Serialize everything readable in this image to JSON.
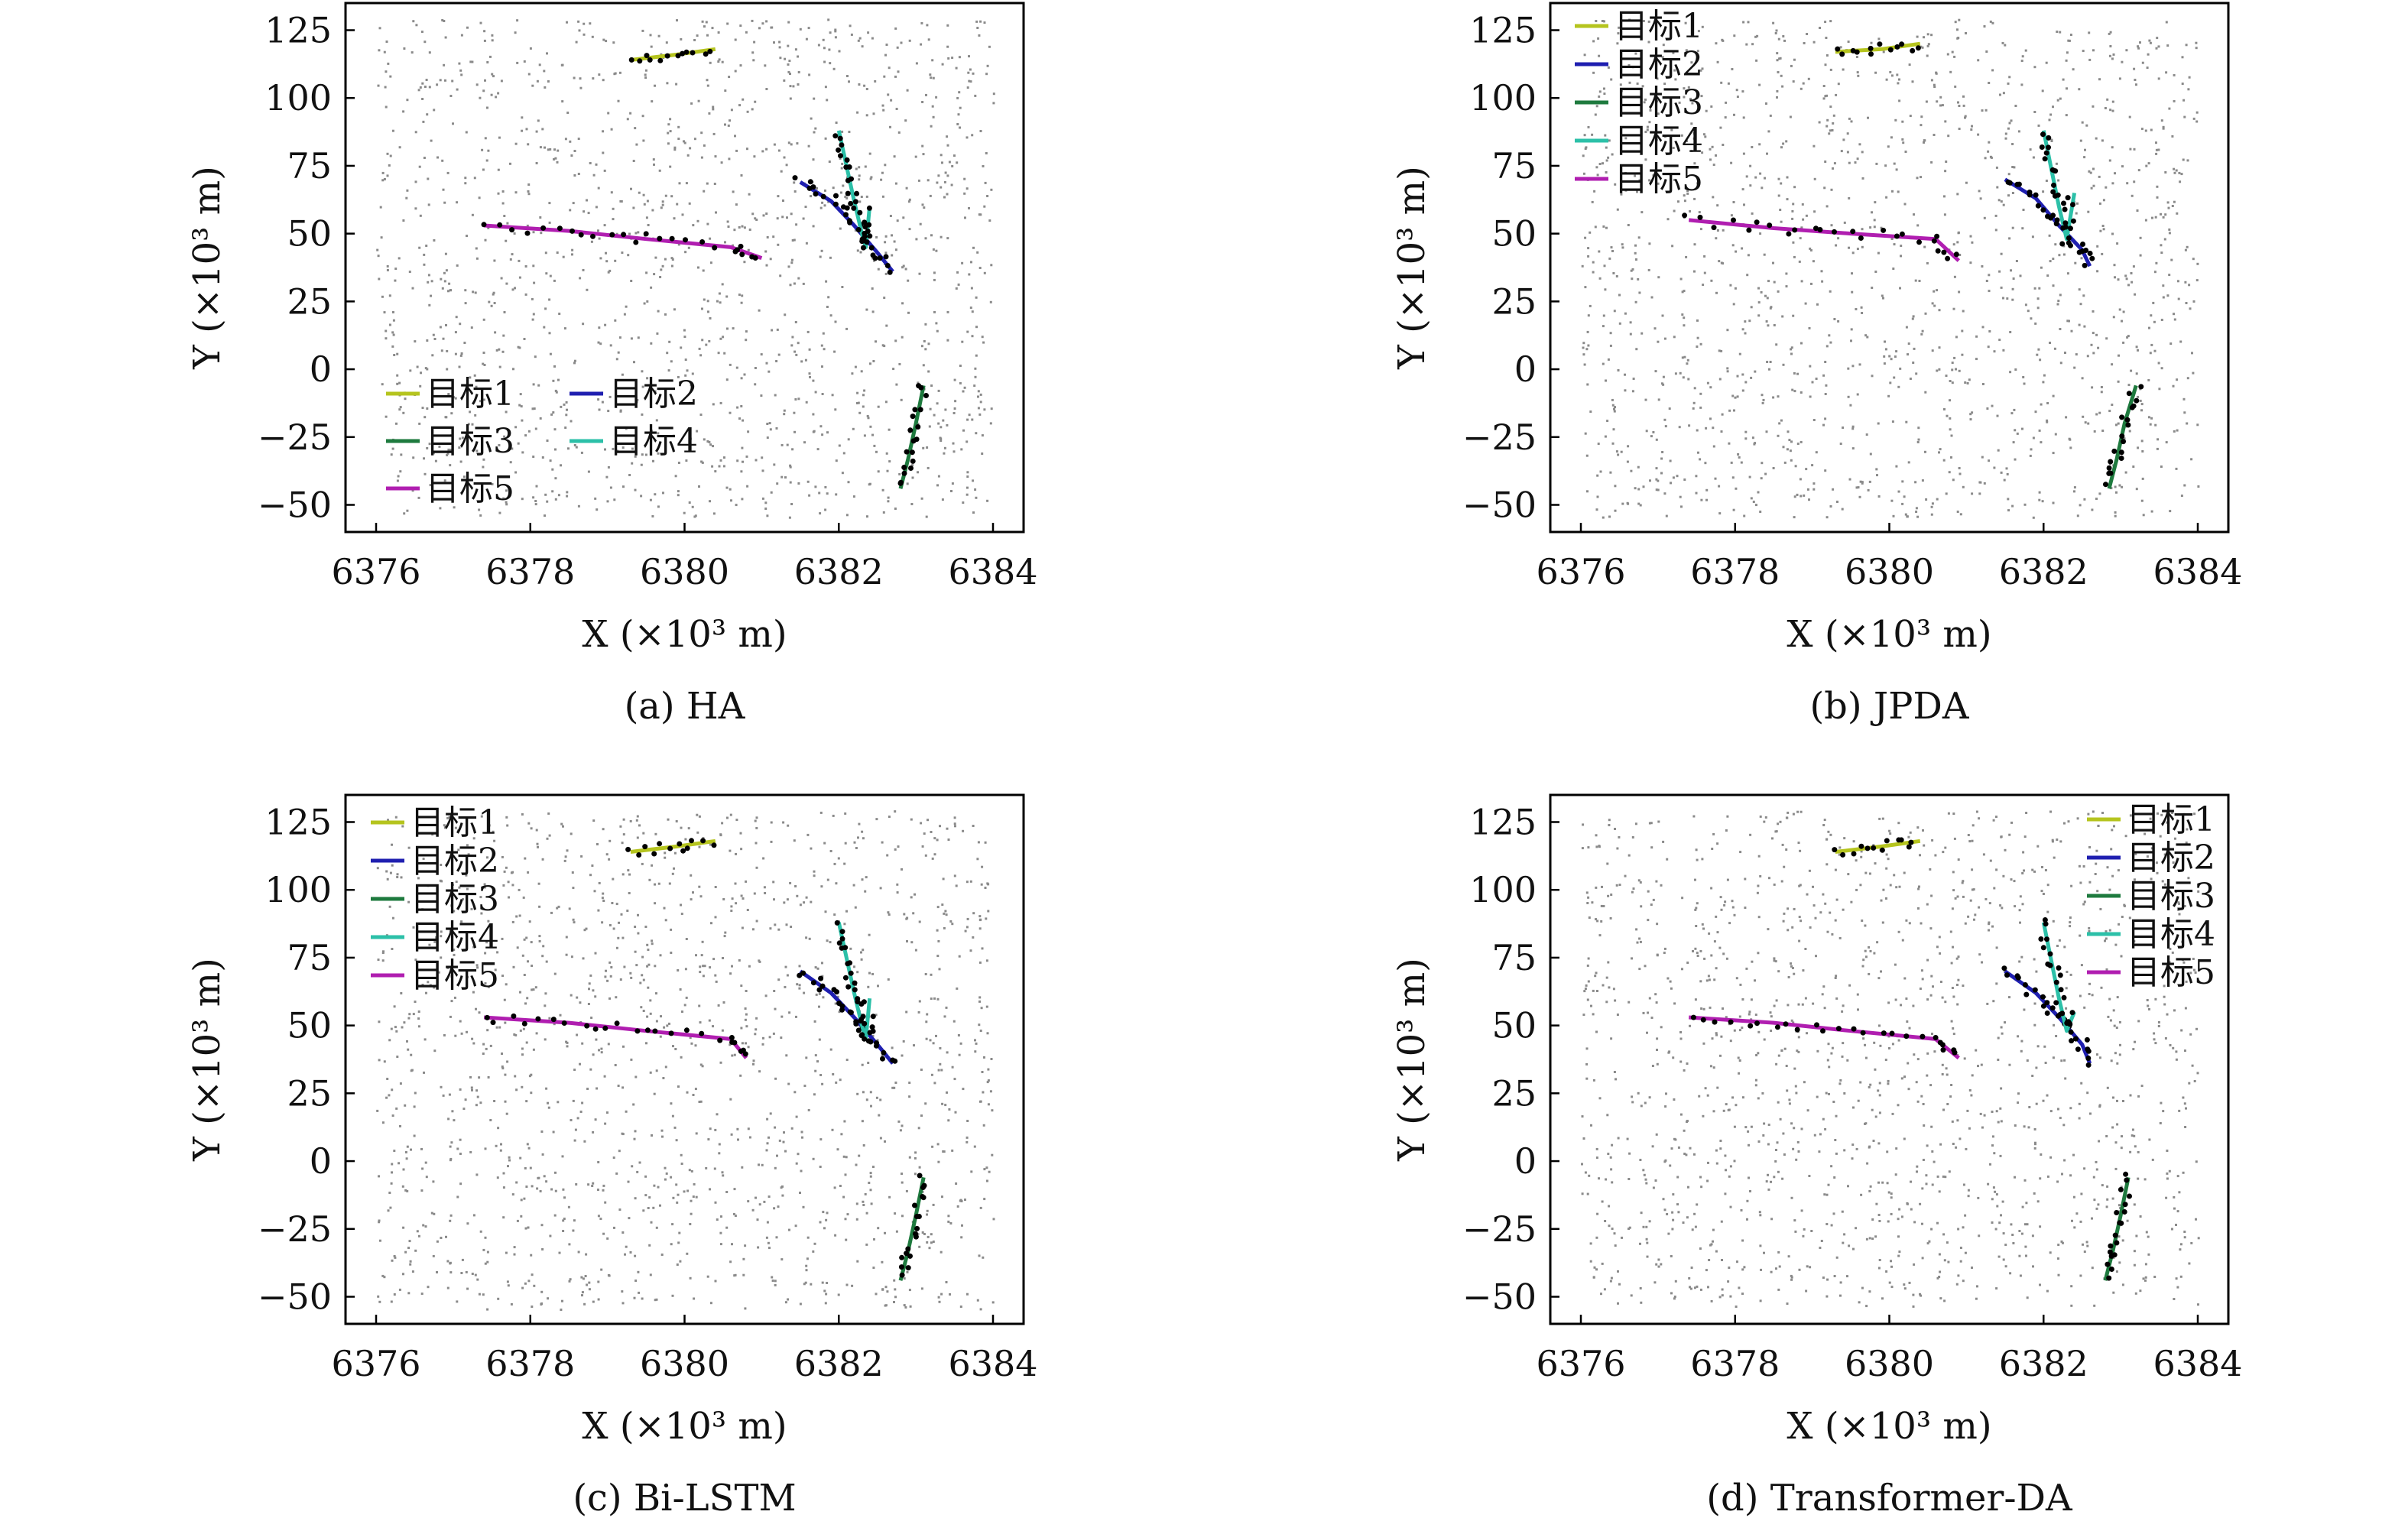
{
  "colors": {
    "target1": "#b5c41e",
    "target2": "#1f1fb0",
    "target3": "#1e7a3e",
    "target4": "#2cc0a8",
    "target5": "#b01eb0",
    "clutter": "#8a8a8a",
    "detections": "#000000"
  },
  "chart_data": [
    {
      "type": "line",
      "caption": "(a) HA",
      "xlabel": "X (×10³ m)",
      "ylabel": "Y (×10³ m)",
      "xlim": [
        6376,
        6384
      ],
      "ylim": [
        -60,
        135
      ],
      "xticks": [
        "6376",
        "6378",
        "6380",
        "6382",
        "6384"
      ],
      "yticks": [
        "125",
        "100",
        "75",
        "50",
        "25",
        "0",
        "−25",
        "−50"
      ],
      "grid": false,
      "legend": "bottom-left (2 columns)",
      "series": [
        {
          "name": "目标1",
          "color_key": "target1",
          "x": [
            6379.3,
            6379.9,
            6380.4
          ],
          "y": [
            114,
            116,
            118
          ]
        },
        {
          "name": "目标2",
          "color_key": "target2",
          "x": [
            6381.5,
            6381.9,
            6382.2,
            6382.5,
            6382.7
          ],
          "y": [
            69,
            62,
            53,
            43,
            36
          ]
        },
        {
          "name": "目标3",
          "color_key": "target3",
          "x": [
            6383.1,
            6383.0,
            6382.9,
            6382.8
          ],
          "y": [
            -6,
            -20,
            -33,
            -44
          ]
        },
        {
          "name": "目标4",
          "color_key": "target4",
          "x": [
            6382.0,
            6382.1,
            6382.2,
            6382.3,
            6382.35,
            6382.4
          ],
          "y": [
            88,
            75,
            62,
            50,
            45,
            60
          ]
        },
        {
          "name": "目标5",
          "color_key": "target5",
          "x": [
            6377.4,
            6378.5,
            6379.5,
            6380.6,
            6381.0
          ],
          "y": [
            53,
            51,
            48,
            45,
            41
          ]
        }
      ]
    },
    {
      "type": "line",
      "caption": "(b) JPDA",
      "xlabel": "X (×10³ m)",
      "ylabel": "Y (×10³ m)",
      "xlim": [
        6376,
        6384
      ],
      "ylim": [
        -60,
        135
      ],
      "xticks": [
        "6376",
        "6378",
        "6380",
        "6382",
        "6384"
      ],
      "yticks": [
        "125",
        "100",
        "75",
        "50",
        "25",
        "0",
        "−25",
        "−50"
      ],
      "grid": false,
      "legend": "top-left",
      "series": [
        {
          "name": "目标1",
          "color_key": "target1",
          "x": [
            6379.3,
            6379.9,
            6380.4
          ],
          "y": [
            117,
            118,
            120
          ]
        },
        {
          "name": "目标2",
          "color_key": "target2",
          "x": [
            6381.5,
            6381.9,
            6382.2,
            6382.5,
            6382.6
          ],
          "y": [
            70,
            63,
            53,
            44,
            38
          ]
        },
        {
          "name": "目标3",
          "color_key": "target3",
          "x": [
            6383.2,
            6383.05,
            6382.95,
            6382.85
          ],
          "y": [
            -6,
            -20,
            -33,
            -44
          ]
        },
        {
          "name": "目标4",
          "color_key": "target4",
          "x": [
            6382.0,
            6382.1,
            6382.2,
            6382.3,
            6382.4
          ],
          "y": [
            88,
            74,
            60,
            48,
            65
          ]
        },
        {
          "name": "目标5",
          "color_key": "target5",
          "x": [
            6377.4,
            6378.5,
            6379.5,
            6380.6,
            6380.9
          ],
          "y": [
            55,
            52,
            50,
            48,
            40
          ]
        }
      ]
    },
    {
      "type": "line",
      "caption": "(c) Bi-LSTM",
      "xlabel": "X (×10³ m)",
      "ylabel": "Y (×10³ m)",
      "xlim": [
        6376,
        6384
      ],
      "ylim": [
        -60,
        135
      ],
      "xticks": [
        "6376",
        "6378",
        "6380",
        "6382",
        "6384"
      ],
      "yticks": [
        "125",
        "100",
        "75",
        "50",
        "25",
        "0",
        "−25",
        "−50"
      ],
      "grid": false,
      "legend": "top-left",
      "series": [
        {
          "name": "目标1",
          "color_key": "target1",
          "x": [
            6379.3,
            6379.9,
            6380.4
          ],
          "y": [
            114,
            116,
            118
          ]
        },
        {
          "name": "目标2",
          "color_key": "target2",
          "x": [
            6381.5,
            6381.9,
            6382.2,
            6382.5,
            6382.7
          ],
          "y": [
            70,
            62,
            53,
            43,
            36
          ]
        },
        {
          "name": "目标3",
          "color_key": "target3",
          "x": [
            6383.1,
            6383.0,
            6382.9,
            6382.8
          ],
          "y": [
            -6,
            -20,
            -33,
            -44
          ]
        },
        {
          "name": "目标4",
          "color_key": "target4",
          "x": [
            6382.0,
            6382.1,
            6382.2,
            6382.3,
            6382.35,
            6382.4
          ],
          "y": [
            88,
            75,
            62,
            50,
            45,
            60
          ]
        },
        {
          "name": "目标5",
          "color_key": "target5",
          "x": [
            6377.4,
            6378.5,
            6379.5,
            6380.6,
            6380.8
          ],
          "y": [
            53,
            51,
            48,
            45,
            38
          ]
        }
      ]
    },
    {
      "type": "line",
      "caption": "(d) Transformer-DA",
      "xlabel": "X (×10³ m)",
      "ylabel": "Y (×10³ m)",
      "xlim": [
        6376,
        6384
      ],
      "ylim": [
        -60,
        135
      ],
      "xticks": [
        "6376",
        "6378",
        "6380",
        "6382",
        "6384"
      ],
      "yticks": [
        "125",
        "100",
        "75",
        "50",
        "25",
        "0",
        "−25",
        "−50"
      ],
      "grid": false,
      "legend": "top-right",
      "series": [
        {
          "name": "目标1",
          "color_key": "target1",
          "x": [
            6379.3,
            6379.9,
            6380.4
          ],
          "y": [
            114,
            116,
            118
          ]
        },
        {
          "name": "目标2",
          "color_key": "target2",
          "x": [
            6381.5,
            6381.9,
            6382.2,
            6382.5,
            6382.6
          ],
          "y": [
            70,
            62,
            53,
            43,
            36
          ]
        },
        {
          "name": "目标3",
          "color_key": "target3",
          "x": [
            6383.1,
            6383.0,
            6382.9,
            6382.8
          ],
          "y": [
            -6,
            -20,
            -33,
            -44
          ]
        },
        {
          "name": "目标4",
          "color_key": "target4",
          "x": [
            6382.0,
            6382.1,
            6382.2,
            6382.3,
            6382.4
          ],
          "y": [
            88,
            74,
            60,
            48,
            55
          ]
        },
        {
          "name": "目标5",
          "color_key": "target5",
          "x": [
            6377.4,
            6378.5,
            6379.5,
            6380.6,
            6380.9
          ],
          "y": [
            53,
            51,
            48,
            45,
            38
          ]
        }
      ]
    }
  ]
}
